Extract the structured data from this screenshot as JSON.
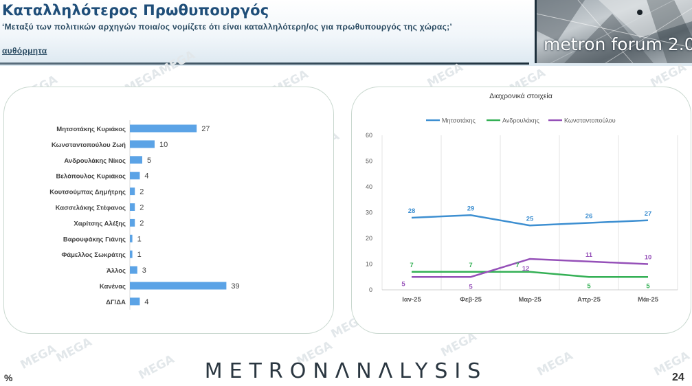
{
  "header": {
    "title": "Καταλληλότερος Πρωθυπουργός",
    "question": "‘Μεταξύ των πολιτικών αρχηγών ποια/ος νομίζετε ότι είναι καταλληλότερη/ος για πρωθυπουργός της χώρας;’",
    "note": "αυθόρμητα",
    "forum_logo": "metron forum 2.0"
  },
  "watermark": "MEGA",
  "footer": {
    "logo": "METRONΛNΛLYSIS",
    "percent": "%",
    "page_number": "24"
  },
  "colors": {
    "bar": "#5ba3e6",
    "mitsotakis": "#3d8fd1",
    "androulakis": "#34b055",
    "konstantopoulou": "#9550b8",
    "title": "#1f4e79"
  },
  "chart_data": [
    {
      "type": "bar",
      "orientation": "horizontal",
      "categories": [
        "Μητσοτάκης Κυριάκος",
        "Κωνσταντοπούλου Ζωή",
        "Ανδρουλάκης Νίκος",
        "Βελόπουλος Κυριάκος",
        "Κουτσούμπας Δημήτρης",
        "Κασσελάκης Στέφανος",
        "Χαρίτσης Αλέξης",
        "Βαρουφάκης Γιάνης",
        "Φάμελλος Σωκράτης",
        "Άλλος",
        "Κανένας",
        "ΔΓ/ΔΑ"
      ],
      "values": [
        27,
        10,
        5,
        4,
        2,
        2,
        2,
        1,
        1,
        3,
        39,
        4
      ],
      "value_labels": [
        "27",
        "10",
        "5",
        "4",
        "2",
        "2",
        "2",
        "1",
        "1",
        "3",
        "39",
        "4"
      ]
    },
    {
      "type": "line",
      "title": "Διαχρονικά στοιχεία",
      "x": [
        "Ιαν-25",
        "Φεβ-25",
        "Μαρ-25",
        "Απρ-25",
        "Μάι-25"
      ],
      "ylim": [
        0,
        60
      ],
      "yticks": [
        "0",
        "10",
        "20",
        "30",
        "40",
        "50",
        "60"
      ],
      "grid": "vertical",
      "legend": "top",
      "series": [
        {
          "name": "Μητσοτάκης",
          "values": [
            28,
            29,
            25,
            26,
            27
          ],
          "labels": [
            "28",
            "29",
            "25",
            "26",
            "27"
          ],
          "color": "#3d8fd1"
        },
        {
          "name": "Ανδρουλάκης",
          "values": [
            7,
            7,
            7,
            5,
            5
          ],
          "labels": [
            "7",
            "7",
            "7",
            "5",
            "5"
          ],
          "color": "#34b055"
        },
        {
          "name": "Κωνσταντοπούλου",
          "values": [
            5,
            5,
            12,
            11,
            10
          ],
          "labels": [
            "5",
            "5",
            "12",
            "11",
            "10"
          ],
          "color": "#9550b8"
        }
      ]
    }
  ]
}
